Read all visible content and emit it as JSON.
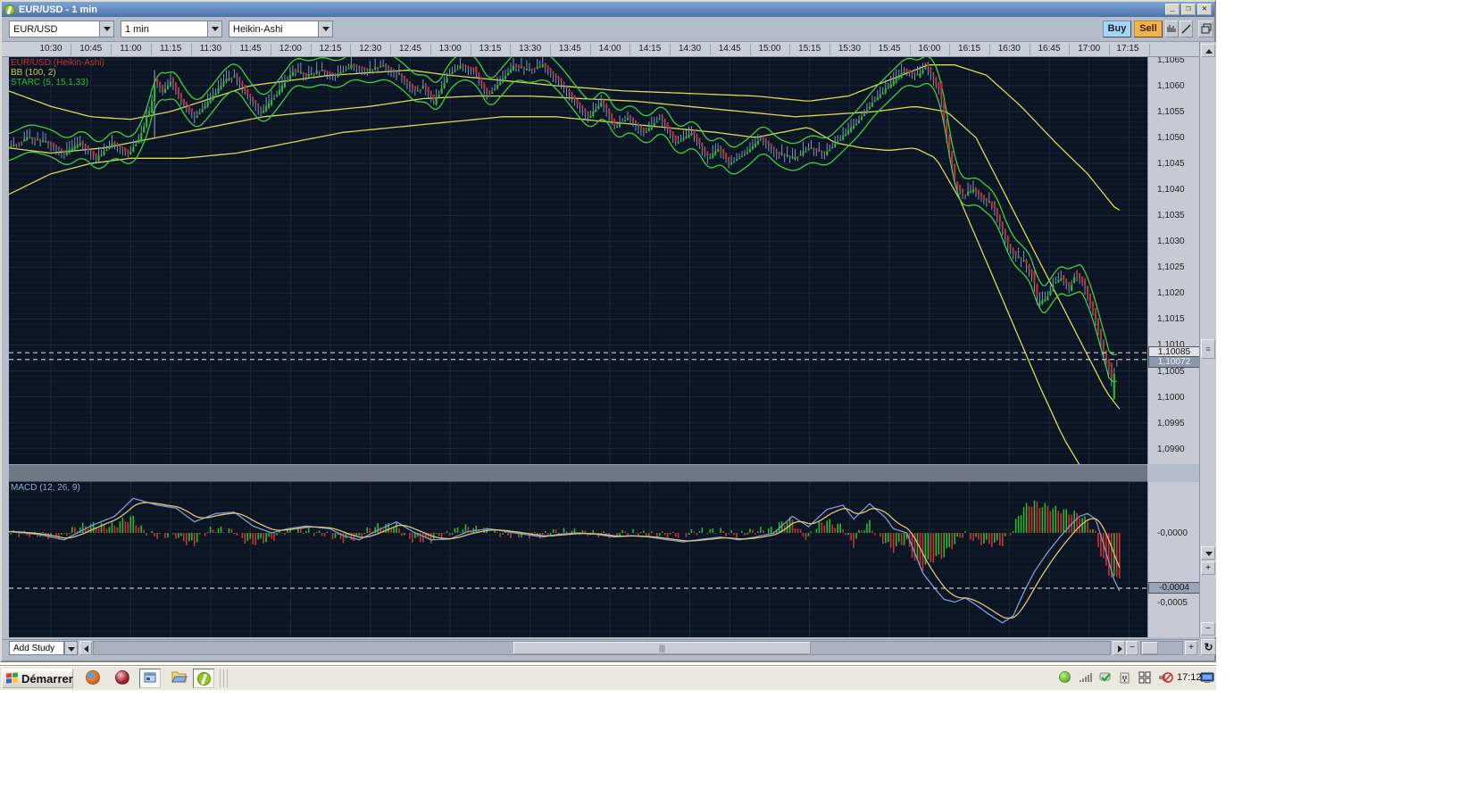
{
  "window": {
    "title": "EUR/USD - 1 min",
    "controls": [
      {
        "name": "minimize",
        "glyph": "_"
      },
      {
        "name": "restore",
        "glyph": "❐"
      },
      {
        "name": "close",
        "glyph": "✕"
      }
    ]
  },
  "toolbar": {
    "symbol": "EUR/USD",
    "interval": "1 min",
    "chart_type": "Heikin-Ashi",
    "buy_label": "Buy",
    "sell_label": "Sell",
    "icon_buttons": [
      "chart-bars",
      "trendline",
      "cascade-windows"
    ]
  },
  "legend": {
    "series": "EUR/USD (Heikin-Ashi)",
    "bb": "BB (100, 2)",
    "starc": "STARC (5, 15,1,33)",
    "macd": "MACD (12, 26, 9)"
  },
  "icons": {
    "reset": "↻",
    "plus": "+",
    "minus": "−",
    "vgrip": "≡",
    "hgrip": "|||"
  },
  "bottom_bar": {
    "add_study": "Add Study"
  },
  "taskbar": {
    "start_label": "Démarrer",
    "clock": "17:12",
    "quick_launch": [
      "firefox",
      "red-orb-app",
      "remote-app",
      "folder",
      "trading-app"
    ],
    "tray": [
      "status-green",
      "signal-bars",
      "shield-check",
      "power-plug",
      "window-panes",
      "volume-muted",
      "display-monitor"
    ]
  },
  "colors": {
    "chart_bg": "#0b1422",
    "grid_minor": "#121c2c",
    "grid_major": "#1d2839",
    "candle_up": "#2db82d",
    "candle_down": "#c03030",
    "wick": "#7d93c0",
    "bb_yellow": "#d8d855",
    "starc_green": "#3fcf3f",
    "macd_line": "#7e9cd0",
    "macd_signal": "#ddc47a",
    "hist_up": "#2eb82e",
    "hist_down": "#cc3333",
    "dashed": "#e8e8e8",
    "legend_red": "#cc3333",
    "buy_bg": "#a9d5f5",
    "sell_bg": "#f5b44a"
  },
  "chart_data": {
    "main": {
      "type": "candlestick",
      "title": "EUR/USD (Heikin-Ashi) 1 min with BB(100,2) and STARC(5,15,1,33)",
      "x_tick_labels": [
        "10:30",
        "10:45",
        "11:00",
        "11:15",
        "11:30",
        "11:45",
        "12:00",
        "12:15",
        "12:30",
        "12:45",
        "13:00",
        "13:15",
        "13:30",
        "13:45",
        "14:00",
        "14:15",
        "14:30",
        "14:45",
        "15:00",
        "15:15",
        "15:30",
        "15:45",
        "16:00",
        "16:15",
        "16:30",
        "16:45",
        "17:00",
        "17:15"
      ],
      "y_ticks": [
        {
          "label": "1,1065",
          "v": 1.1065
        },
        {
          "label": "1,1060",
          "v": 1.106
        },
        {
          "label": "1,1055",
          "v": 1.1055
        },
        {
          "label": "1,1050",
          "v": 1.105
        },
        {
          "label": "1,1045",
          "v": 1.1045
        },
        {
          "label": "1,1040",
          "v": 1.104
        },
        {
          "label": "1,1035",
          "v": 1.1035
        },
        {
          "label": "1,1030",
          "v": 1.103
        },
        {
          "label": "1,1025",
          "v": 1.1025
        },
        {
          "label": "1,1020",
          "v": 1.102
        },
        {
          "label": "1,1015",
          "v": 1.1015
        },
        {
          "label": "1,1010",
          "v": 1.101
        },
        {
          "label": "1,1005",
          "v": 1.1005
        },
        {
          "label": "1,1000",
          "v": 1.1
        },
        {
          "label": "1,0995",
          "v": 1.0995
        },
        {
          "label": "1,0990",
          "v": 1.099
        }
      ],
      "price_tags": [
        {
          "label": "1,10085",
          "v": 1.10085,
          "style": "light"
        },
        {
          "label": "1,10072",
          "v": 1.10072,
          "style": "dark"
        }
      ],
      "dashed_levels": [
        1.10085,
        1.10072
      ],
      "ylim": [
        1.09875,
        1.10655
      ],
      "bar_interval_min": 1,
      "price_path": [
        [
          -16,
          1.1048
        ],
        [
          -8,
          1.105
        ],
        [
          0,
          1.1049
        ],
        [
          6,
          1.1047
        ],
        [
          12,
          1.1049
        ],
        [
          18,
          1.1046
        ],
        [
          24,
          1.1049
        ],
        [
          30,
          1.1047
        ],
        [
          34,
          1.105
        ],
        [
          38,
          1.1056
        ],
        [
          40,
          1.1061
        ],
        [
          43,
          1.1059
        ],
        [
          46,
          1.1061
        ],
        [
          50,
          1.1057
        ],
        [
          55,
          1.1054
        ],
        [
          60,
          1.1057
        ],
        [
          66,
          1.1061
        ],
        [
          70,
          1.1062
        ],
        [
          75,
          1.1058
        ],
        [
          80,
          1.1055
        ],
        [
          85,
          1.1058
        ],
        [
          92,
          1.1063
        ],
        [
          97,
          1.1062
        ],
        [
          102,
          1.1063
        ],
        [
          108,
          1.1062
        ],
        [
          114,
          1.1064
        ],
        [
          120,
          1.1063
        ],
        [
          126,
          1.1064
        ],
        [
          132,
          1.1062
        ],
        [
          138,
          1.1059
        ],
        [
          141,
          1.106
        ],
        [
          145,
          1.1057
        ],
        [
          150,
          1.1062
        ],
        [
          155,
          1.1064
        ],
        [
          160,
          1.1063
        ],
        [
          165,
          1.1058
        ],
        [
          170,
          1.1061
        ],
        [
          175,
          1.1064
        ],
        [
          180,
          1.1063
        ],
        [
          186,
          1.1064
        ],
        [
          192,
          1.1061
        ],
        [
          198,
          1.1057
        ],
        [
          203,
          1.1054
        ],
        [
          208,
          1.1057
        ],
        [
          213,
          1.1052
        ],
        [
          218,
          1.1054
        ],
        [
          224,
          1.1051
        ],
        [
          230,
          1.1054
        ],
        [
          236,
          1.1049
        ],
        [
          242,
          1.1051
        ],
        [
          248,
          1.1046
        ],
        [
          252,
          1.1048
        ],
        [
          256,
          1.1045
        ],
        [
          262,
          1.1047
        ],
        [
          268,
          1.105
        ],
        [
          274,
          1.1047
        ],
        [
          280,
          1.1046
        ],
        [
          286,
          1.1048
        ],
        [
          292,
          1.1047
        ],
        [
          298,
          1.105
        ],
        [
          304,
          1.1053
        ],
        [
          310,
          1.1057
        ],
        [
          316,
          1.106
        ],
        [
          322,
          1.1063
        ],
        [
          327,
          1.1062
        ],
        [
          330,
          1.1064
        ],
        [
          333,
          1.1061
        ],
        [
          335,
          1.1059
        ],
        [
          337,
          1.1052
        ],
        [
          339,
          1.1046
        ],
        [
          341,
          1.1041
        ],
        [
          344,
          1.1039
        ],
        [
          348,
          1.104
        ],
        [
          352,
          1.1038
        ],
        [
          355,
          1.1037
        ],
        [
          358,
          1.1033
        ],
        [
          361,
          1.1029
        ],
        [
          364,
          1.1027
        ],
        [
          367,
          1.1026
        ],
        [
          370,
          1.1023
        ],
        [
          372,
          1.1018
        ],
        [
          375,
          1.1019
        ],
        [
          378,
          1.1022
        ],
        [
          381,
          1.1023
        ],
        [
          384,
          1.1021
        ],
        [
          386,
          1.1024
        ],
        [
          389,
          1.1022
        ],
        [
          391,
          1.1019
        ],
        [
          393,
          1.1016
        ],
        [
          395,
          1.1012
        ],
        [
          397,
          1.1008
        ],
        [
          399,
          1.1005
        ],
        [
          400,
          1.1002
        ],
        [
          401,
          1.1007
        ]
      ],
      "bb_upper": [
        [
          -16,
          1.1059
        ],
        [
          0,
          1.1056
        ],
        [
          15,
          1.1054
        ],
        [
          30,
          1.10535
        ],
        [
          45,
          1.1055
        ],
        [
          60,
          1.10575
        ],
        [
          75,
          1.106
        ],
        [
          90,
          1.1061
        ],
        [
          105,
          1.1062
        ],
        [
          120,
          1.10625
        ],
        [
          135,
          1.1063
        ],
        [
          150,
          1.1062
        ],
        [
          170,
          1.1061
        ],
        [
          190,
          1.106
        ],
        [
          215,
          1.1059
        ],
        [
          240,
          1.10585
        ],
        [
          265,
          1.1058
        ],
        [
          285,
          1.1057
        ],
        [
          300,
          1.1058
        ],
        [
          315,
          1.1061
        ],
        [
          330,
          1.1064
        ],
        [
          340,
          1.1064
        ],
        [
          352,
          1.1062
        ],
        [
          365,
          1.1056
        ],
        [
          378,
          1.1049
        ],
        [
          390,
          1.1043
        ],
        [
          401,
          1.1036
        ]
      ],
      "bb_middle": [
        [
          -16,
          1.1048
        ],
        [
          0,
          1.1047
        ],
        [
          20,
          1.1048
        ],
        [
          40,
          1.105
        ],
        [
          60,
          1.1052
        ],
        [
          80,
          1.1054
        ],
        [
          100,
          1.1055
        ],
        [
          120,
          1.1056
        ],
        [
          140,
          1.10575
        ],
        [
          160,
          1.1058
        ],
        [
          180,
          1.1058
        ],
        [
          200,
          1.10575
        ],
        [
          220,
          1.1057
        ],
        [
          240,
          1.1056
        ],
        [
          260,
          1.1055
        ],
        [
          280,
          1.1054
        ],
        [
          295,
          1.10545
        ],
        [
          310,
          1.1055
        ],
        [
          325,
          1.1056
        ],
        [
          337,
          1.1055
        ],
        [
          348,
          1.105
        ],
        [
          358,
          1.104
        ],
        [
          368,
          1.103
        ],
        [
          378,
          1.102
        ],
        [
          388,
          1.101
        ],
        [
          397,
          1.1001
        ],
        [
          403,
          1.0997
        ]
      ],
      "bb_lower": [
        [
          -16,
          1.1039
        ],
        [
          0,
          1.1043
        ],
        [
          15,
          1.1045
        ],
        [
          30,
          1.1046
        ],
        [
          50,
          1.1046
        ],
        [
          70,
          1.1047
        ],
        [
          90,
          1.1049
        ],
        [
          110,
          1.1051
        ],
        [
          130,
          1.1052
        ],
        [
          150,
          1.1053
        ],
        [
          170,
          1.1054
        ],
        [
          190,
          1.1054
        ],
        [
          210,
          1.1053
        ],
        [
          230,
          1.1052
        ],
        [
          250,
          1.1051
        ],
        [
          265,
          1.105
        ],
        [
          275,
          1.1051
        ],
        [
          285,
          1.1052
        ],
        [
          295,
          1.1049
        ],
        [
          305,
          1.1048
        ],
        [
          315,
          1.10475
        ],
        [
          325,
          1.1048
        ],
        [
          333,
          1.1046
        ],
        [
          342,
          1.1038
        ],
        [
          352,
          1.1026
        ],
        [
          362,
          1.1014
        ],
        [
          372,
          1.1002
        ],
        [
          381,
          1.0992
        ],
        [
          388,
          1.0986
        ]
      ],
      "starc_offset": 0.00026,
      "long_wicks": [
        {
          "t": 39,
          "from": 1.105,
          "to": 1.1063
        }
      ]
    },
    "macd": {
      "type": "line",
      "title": "MACD (12, 26, 9)",
      "unit": "1e-4",
      "y_labels": [
        {
          "label": "-0,0000",
          "v": 0
        },
        {
          "label": "-0,0005",
          "v": -5
        }
      ],
      "tag": {
        "label": "-0,0004",
        "v": -4
      },
      "dashed_level": -4,
      "signal_ema_alpha": 0.22,
      "hist_scale": 1.8,
      "macd_points": [
        [
          -16,
          0.1
        ],
        [
          -5,
          -0.1
        ],
        [
          5,
          -0.5
        ],
        [
          15,
          0.5
        ],
        [
          24,
          1.2
        ],
        [
          31,
          2.5
        ],
        [
          40,
          2.0
        ],
        [
          47,
          1.8
        ],
        [
          54,
          0.8
        ],
        [
          62,
          1.4
        ],
        [
          69,
          1.5
        ],
        [
          76,
          0.5
        ],
        [
          83,
          0.0
        ],
        [
          89,
          0.3
        ],
        [
          96,
          0.5
        ],
        [
          105,
          0.3
        ],
        [
          110,
          -0.2
        ],
        [
          116,
          -0.5
        ],
        [
          123,
          0.2
        ],
        [
          130,
          0.8
        ],
        [
          136,
          0.1
        ],
        [
          143,
          -0.5
        ],
        [
          150,
          -0.45
        ],
        [
          157,
          0.1
        ],
        [
          165,
          0.3
        ],
        [
          171,
          0.1
        ],
        [
          178,
          -0.1
        ],
        [
          185,
          -0.3
        ],
        [
          191,
          -0.1
        ],
        [
          198,
          0.0
        ],
        [
          205,
          -0.1
        ],
        [
          212,
          -0.3
        ],
        [
          218,
          -0.2
        ],
        [
          225,
          -0.3
        ],
        [
          232,
          -0.5
        ],
        [
          238,
          -0.65
        ],
        [
          245,
          -0.45
        ],
        [
          252,
          -0.3
        ],
        [
          259,
          -0.5
        ],
        [
          265,
          -0.3
        ],
        [
          272,
          0.0
        ],
        [
          279,
          1.2
        ],
        [
          285,
          0.45
        ],
        [
          292,
          1.7
        ],
        [
          298,
          2.0
        ],
        [
          302,
          1.0
        ],
        [
          308,
          2.1
        ],
        [
          314,
          1.1
        ],
        [
          317,
          0.3
        ],
        [
          322,
          0.0
        ],
        [
          328,
          -2.9
        ],
        [
          332,
          -3.9
        ],
        [
          336,
          -4.8
        ],
        [
          340,
          -5.0
        ],
        [
          344,
          -4.7
        ],
        [
          348,
          -5.2
        ],
        [
          353,
          -5.9
        ],
        [
          358,
          -6.5
        ],
        [
          362,
          -6.0
        ],
        [
          366,
          -4.3
        ],
        [
          370,
          -2.8
        ],
        [
          375,
          -1.4
        ],
        [
          380,
          -0.2
        ],
        [
          384,
          0.65
        ],
        [
          387,
          1.2
        ],
        [
          390,
          1.4
        ],
        [
          393,
          1.0
        ],
        [
          396,
          -0.8
        ],
        [
          400,
          -3.4
        ],
        [
          402,
          -4.2
        ]
      ]
    }
  }
}
